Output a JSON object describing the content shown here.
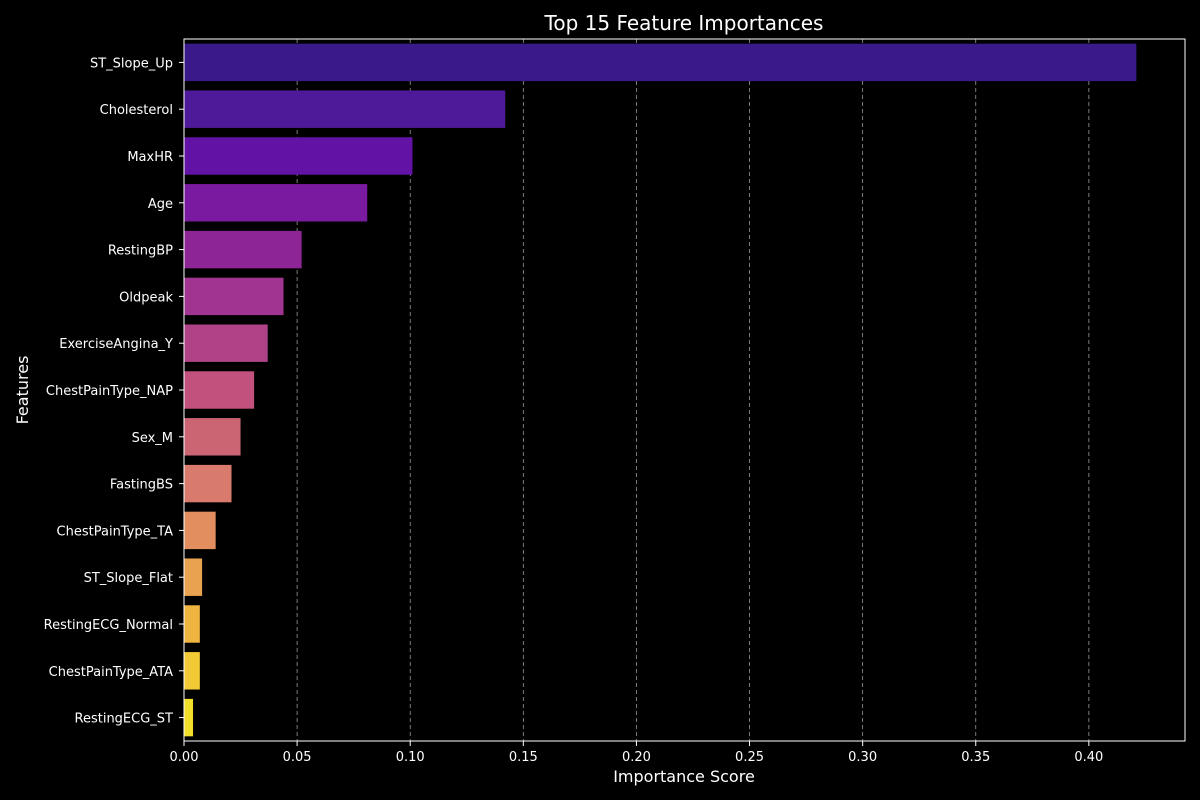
{
  "chart_data": {
    "type": "bar",
    "orientation": "horizontal",
    "title": "Top 15 Feature Importances",
    "xlabel": "Importance Score",
    "ylabel": "Features",
    "xlim": [
      0,
      0.4425
    ],
    "xticks": [
      0.0,
      0.05,
      0.1,
      0.15,
      0.2,
      0.25,
      0.3,
      0.35,
      0.4
    ],
    "xtick_labels": [
      "0.00",
      "0.05",
      "0.10",
      "0.15",
      "0.20",
      "0.25",
      "0.30",
      "0.35",
      "0.40"
    ],
    "grid": "x-dashed",
    "colormap": "plasma",
    "background": "#000000",
    "categories": [
      "ST_Slope_Up",
      "Cholesterol",
      "MaxHR",
      "Age",
      "RestingBP",
      "Oldpeak",
      "ExerciseAngina_Y",
      "ChestPainType_NAP",
      "Sex_M",
      "FastingBS",
      "ChestPainType_TA",
      "ST_Slope_Flat",
      "RestingECG_Normal",
      "ChestPainType_ATA",
      "RestingECG_ST"
    ],
    "values": [
      0.421,
      0.142,
      0.101,
      0.081,
      0.052,
      0.044,
      0.037,
      0.031,
      0.025,
      0.021,
      0.014,
      0.008,
      0.007,
      0.007,
      0.004
    ],
    "colors": [
      "#3a1a8a",
      "#4f1a99",
      "#6312a6",
      "#7a1aa0",
      "#8e2596",
      "#a03490",
      "#b04388",
      "#c2517e",
      "#cc6573",
      "#d87a6c",
      "#e28e5e",
      "#e9a24f",
      "#efb540",
      "#f2ca35",
      "#f2df2a"
    ]
  }
}
